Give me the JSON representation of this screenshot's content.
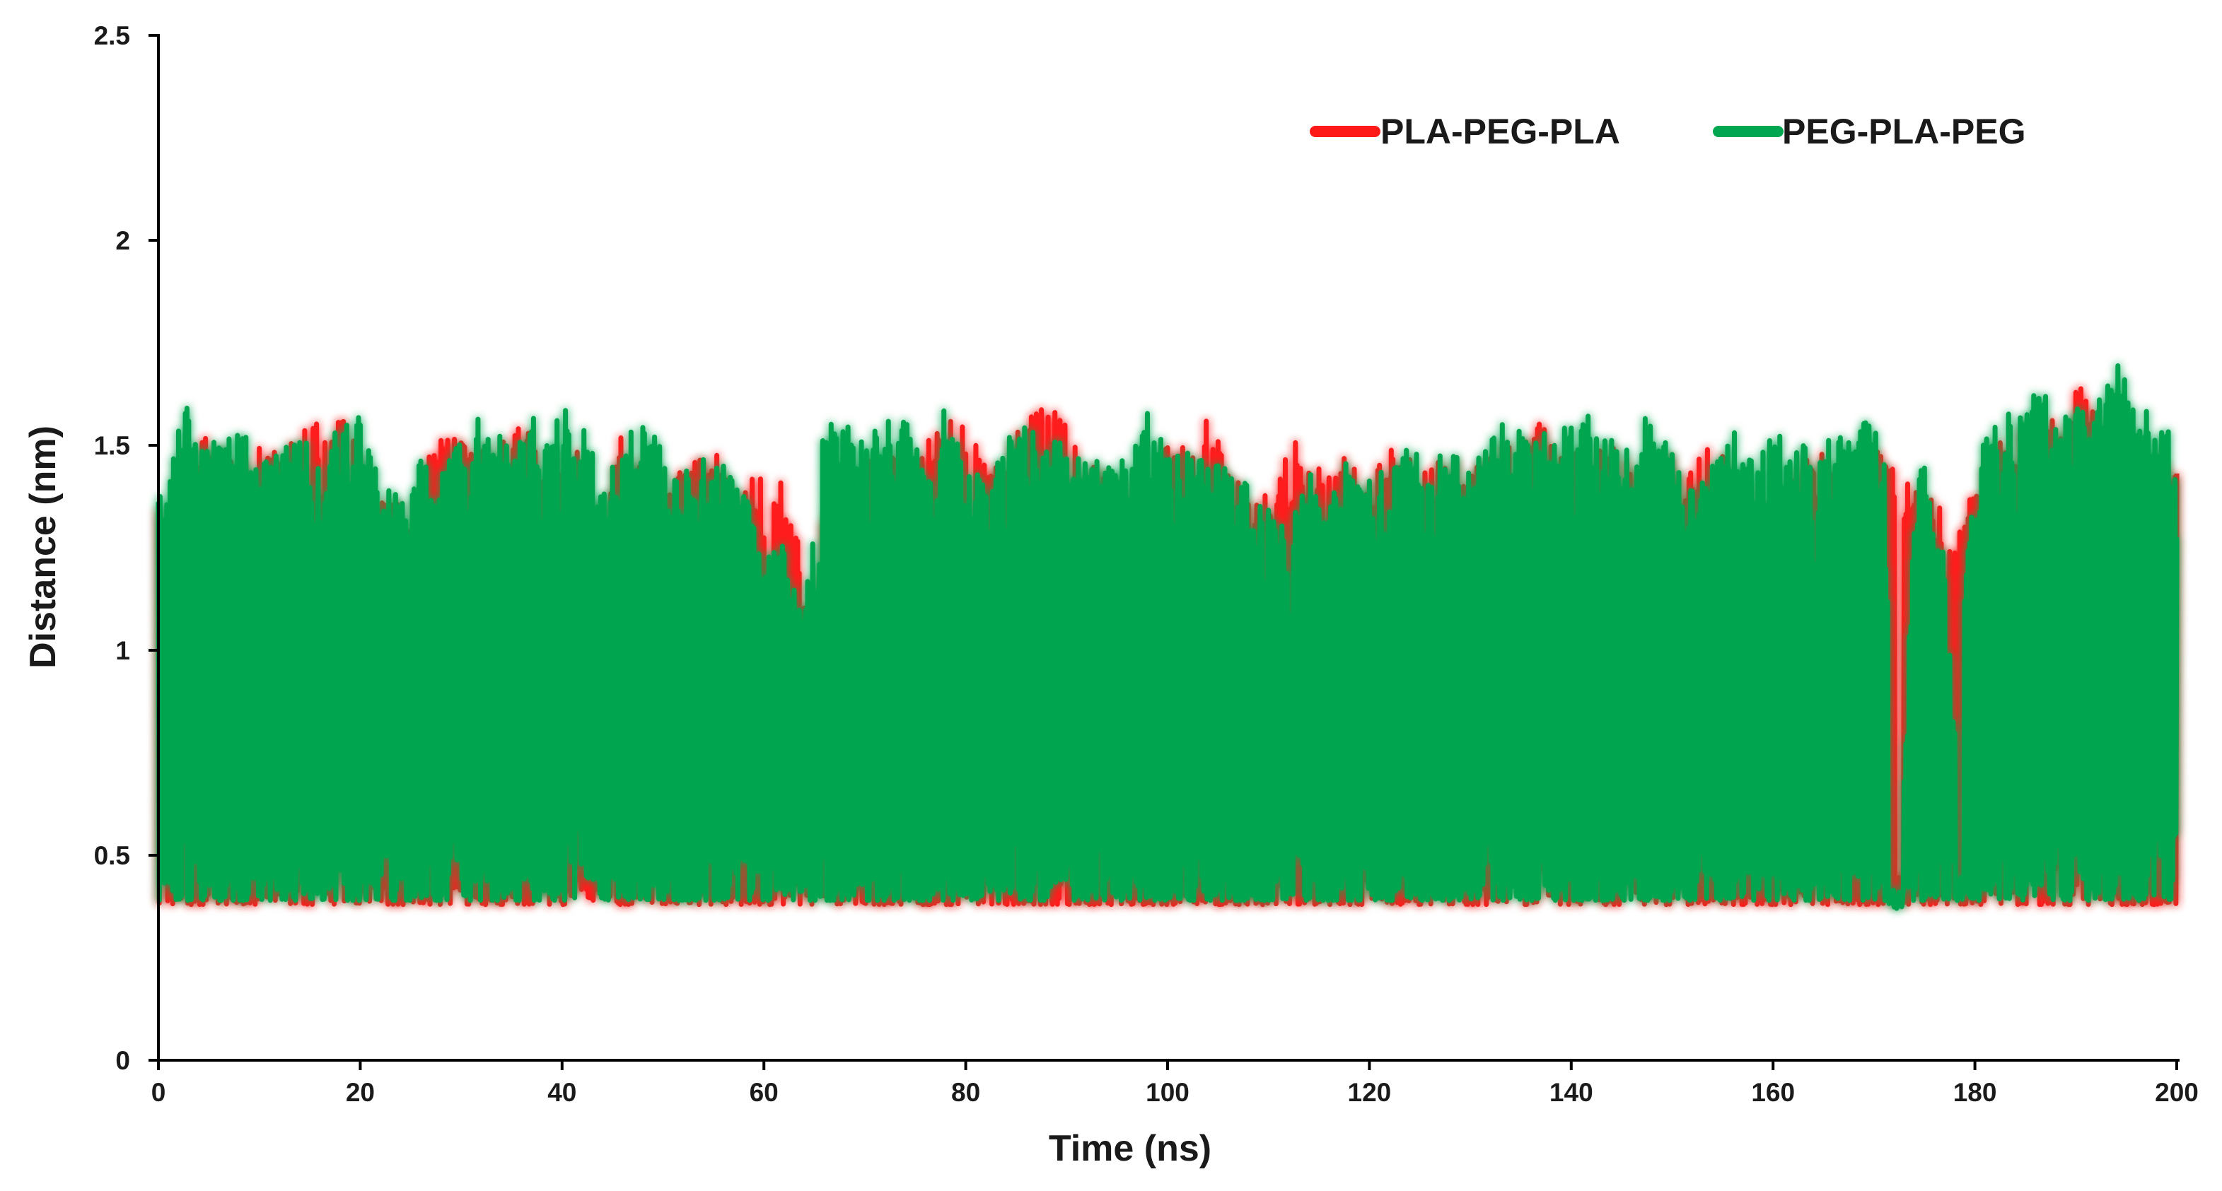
{
  "chart_data": {
    "type": "line",
    "title": "",
    "xlabel": "Time (ns)",
    "ylabel": "Distance (nm)",
    "xlim": [
      0,
      200
    ],
    "ylim": [
      0,
      2.5
    ],
    "xticks": [
      "0",
      "20",
      "40",
      "60",
      "80",
      "100",
      "120",
      "140",
      "160",
      "180",
      "200"
    ],
    "yticks": [
      "0",
      "0.5",
      "1",
      "1.5",
      "2",
      "2.5"
    ],
    "grid": false,
    "legend_position": "top-right",
    "series": [
      {
        "name": "PLA-PEG-PLA",
        "color": "#ff1a1a",
        "baseline": 0.36,
        "envelope": [
          [
            0,
            1.4
          ],
          [
            2,
            1.3
          ],
          [
            4,
            1.55
          ],
          [
            6,
            1.5
          ],
          [
            8,
            1.45
          ],
          [
            10,
            1.5
          ],
          [
            12,
            1.48
          ],
          [
            15,
            1.55
          ],
          [
            18,
            1.57
          ],
          [
            20,
            1.5
          ],
          [
            22,
            1.38
          ],
          [
            25,
            1.35
          ],
          [
            28,
            1.55
          ],
          [
            30,
            1.52
          ],
          [
            33,
            1.5
          ],
          [
            36,
            1.55
          ],
          [
            38,
            1.5
          ],
          [
            40,
            1.48
          ],
          [
            42,
            1.5
          ],
          [
            44,
            1.38
          ],
          [
            46,
            1.55
          ],
          [
            48,
            1.48
          ],
          [
            50,
            1.44
          ],
          [
            53,
            1.46
          ],
          [
            56,
            1.48
          ],
          [
            58,
            1.4
          ],
          [
            60,
            1.45
          ],
          [
            62,
            1.42
          ],
          [
            64,
            1.2
          ],
          [
            66,
            1.35
          ],
          [
            68,
            1.45
          ],
          [
            70,
            1.48
          ],
          [
            72,
            1.5
          ],
          [
            75,
            1.46
          ],
          [
            78,
            1.58
          ],
          [
            80,
            1.55
          ],
          [
            82,
            1.45
          ],
          [
            84,
            1.5
          ],
          [
            86,
            1.57
          ],
          [
            88,
            1.62
          ],
          [
            90,
            1.58
          ],
          [
            93,
            1.45
          ],
          [
            96,
            1.4
          ],
          [
            98,
            1.42
          ],
          [
            100,
            1.5
          ],
          [
            102,
            1.55
          ],
          [
            104,
            1.6
          ],
          [
            106,
            1.45
          ],
          [
            108,
            1.4
          ],
          [
            110,
            1.38
          ],
          [
            112,
            1.55
          ],
          [
            114,
            1.45
          ],
          [
            116,
            1.45
          ],
          [
            118,
            1.48
          ],
          [
            120,
            1.45
          ],
          [
            122,
            1.5
          ],
          [
            125,
            1.45
          ],
          [
            128,
            1.48
          ],
          [
            130,
            1.45
          ],
          [
            133,
            1.5
          ],
          [
            135,
            1.55
          ],
          [
            136,
            1.62
          ],
          [
            138,
            1.5
          ],
          [
            140,
            1.52
          ],
          [
            143,
            1.5
          ],
          [
            146,
            1.5
          ],
          [
            148,
            1.45
          ],
          [
            150,
            1.5
          ],
          [
            152,
            1.48
          ],
          [
            154,
            1.55
          ],
          [
            156,
            1.42
          ],
          [
            158,
            1.4
          ],
          [
            160,
            1.35
          ],
          [
            162,
            1.45
          ],
          [
            165,
            1.5
          ],
          [
            168,
            1.4
          ],
          [
            170,
            1.5
          ],
          [
            172,
            1.45
          ],
          [
            174,
            1.4
          ],
          [
            176,
            1.38
          ],
          [
            178,
            1.3
          ],
          [
            180,
            1.4
          ],
          [
            182,
            1.5
          ],
          [
            185,
            1.55
          ],
          [
            188,
            1.58
          ],
          [
            190,
            1.68
          ],
          [
            192,
            1.6
          ],
          [
            194,
            1.55
          ],
          [
            196,
            1.5
          ],
          [
            198,
            1.48
          ],
          [
            200,
            1.45
          ]
        ],
        "dips": [
          [
            9.5,
            0.8
          ],
          [
            60.5,
            0.65
          ],
          [
            64.5,
            0.82
          ],
          [
            65,
            0.7
          ],
          [
            80.5,
            0.95
          ],
          [
            97.5,
            0.55
          ],
          [
            103,
            0.85
          ],
          [
            125,
            0.72
          ],
          [
            135,
            0.6
          ],
          [
            154,
            0.7
          ],
          [
            172.5,
            0.4
          ],
          [
            183.5,
            0.5
          ]
        ]
      },
      {
        "name": "PEG-PLA-PEG",
        "color": "#00a650",
        "baseline": 0.37,
        "envelope": [
          [
            0,
            1.42
          ],
          [
            1,
            1.45
          ],
          [
            2.5,
            1.62
          ],
          [
            4,
            1.5
          ],
          [
            6,
            1.52
          ],
          [
            8,
            1.55
          ],
          [
            10,
            1.48
          ],
          [
            12,
            1.5
          ],
          [
            14,
            1.52
          ],
          [
            16,
            1.5
          ],
          [
            18,
            1.55
          ],
          [
            20,
            1.58
          ],
          [
            22,
            1.4
          ],
          [
            24,
            1.38
          ],
          [
            26,
            1.48
          ],
          [
            28,
            1.45
          ],
          [
            30,
            1.52
          ],
          [
            32,
            1.58
          ],
          [
            34,
            1.55
          ],
          [
            36,
            1.55
          ],
          [
            37,
            1.61
          ],
          [
            38,
            1.5
          ],
          [
            40,
            1.6
          ],
          [
            42,
            1.58
          ],
          [
            44,
            1.4
          ],
          [
            46,
            1.52
          ],
          [
            48,
            1.55
          ],
          [
            50,
            1.5
          ],
          [
            52,
            1.45
          ],
          [
            54,
            1.48
          ],
          [
            56,
            1.45
          ],
          [
            58,
            1.4
          ],
          [
            60,
            1.3
          ],
          [
            62,
            1.25
          ],
          [
            64,
            1.1
          ],
          [
            66,
            1.55
          ],
          [
            68,
            1.58
          ],
          [
            70,
            1.52
          ],
          [
            72,
            1.56
          ],
          [
            74,
            1.58
          ],
          [
            76,
            1.45
          ],
          [
            78,
            1.61
          ],
          [
            80,
            1.45
          ],
          [
            82,
            1.42
          ],
          [
            84,
            1.52
          ],
          [
            86,
            1.55
          ],
          [
            88,
            1.5
          ],
          [
            90,
            1.52
          ],
          [
            92,
            1.45
          ],
          [
            94,
            1.5
          ],
          [
            96,
            1.45
          ],
          [
            98,
            1.58
          ],
          [
            100,
            1.52
          ],
          [
            102,
            1.5
          ],
          [
            104,
            1.48
          ],
          [
            106,
            1.45
          ],
          [
            108,
            1.4
          ],
          [
            110,
            1.35
          ],
          [
            112,
            1.3
          ],
          [
            114,
            1.45
          ],
          [
            116,
            1.35
          ],
          [
            118,
            1.5
          ],
          [
            120,
            1.48
          ],
          [
            122,
            1.45
          ],
          [
            124,
            1.5
          ],
          [
            126,
            1.45
          ],
          [
            128,
            1.5
          ],
          [
            130,
            1.45
          ],
          [
            132,
            1.55
          ],
          [
            134,
            1.58
          ],
          [
            136,
            1.5
          ],
          [
            138,
            1.55
          ],
          [
            140,
            1.55
          ],
          [
            142,
            1.58
          ],
          [
            144,
            1.52
          ],
          [
            146,
            1.55
          ],
          [
            148,
            1.58
          ],
          [
            150,
            1.5
          ],
          [
            152,
            1.4
          ],
          [
            154,
            1.45
          ],
          [
            156,
            1.55
          ],
          [
            158,
            1.48
          ],
          [
            160,
            1.55
          ],
          [
            162,
            1.55
          ],
          [
            164,
            1.5
          ],
          [
            166,
            1.58
          ],
          [
            168,
            1.55
          ],
          [
            170,
            1.58
          ],
          [
            171.5,
            1.4
          ],
          [
            173,
            0.7
          ],
          [
            174,
            1.5
          ],
          [
            175,
            1.45
          ],
          [
            176,
            1.3
          ],
          [
            177,
            1.25
          ],
          [
            178,
            0.8
          ],
          [
            180,
            1.5
          ],
          [
            182,
            1.55
          ],
          [
            184,
            1.62
          ],
          [
            186,
            1.66
          ],
          [
            188,
            1.58
          ],
          [
            190,
            1.6
          ],
          [
            192,
            1.6
          ],
          [
            194,
            1.72
          ],
          [
            196,
            1.6
          ],
          [
            198,
            1.58
          ],
          [
            200,
            1.55
          ]
        ],
        "dips": [
          [
            171.8,
            0.37
          ],
          [
            172.5,
            0.37
          ],
          [
            178.5,
            0.4
          ]
        ]
      }
    ]
  }
}
